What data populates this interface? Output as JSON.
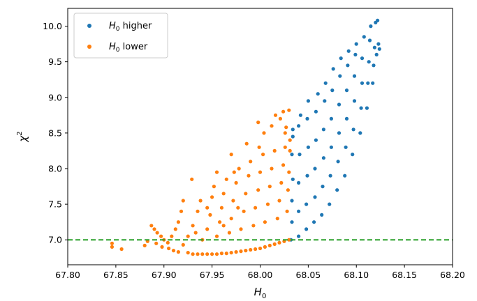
{
  "chart_data": {
    "type": "scatter",
    "xlabel": "H",
    "xlabel_sub": "0",
    "ylabel": "χ",
    "ylabel_sup": "2",
    "xlim": [
      67.8,
      68.2
    ],
    "ylim": [
      6.65,
      10.25
    ],
    "xticks": [
      67.8,
      67.85,
      67.9,
      67.95,
      68.0,
      68.05,
      68.1,
      68.15,
      68.2
    ],
    "xtick_labels": [
      "67.80",
      "67.85",
      "67.90",
      "67.95",
      "68.00",
      "68.05",
      "68.10",
      "68.15",
      "68.20"
    ],
    "yticks": [
      7.0,
      7.5,
      8.0,
      8.5,
      9.0,
      9.5,
      10.0
    ],
    "ytick_labels": [
      "7.0",
      "7.5",
      "8.0",
      "8.5",
      "9.0",
      "9.5",
      "10.0"
    ],
    "grid": false,
    "legend_position": "top-left",
    "reference_line": {
      "y": 7.0,
      "style": "dashed",
      "color": "#2ca02c"
    },
    "series": [
      {
        "name_base": "H",
        "name_sub": "0",
        "name_rest": " higher",
        "color": "#1f77b4",
        "points": [
          [
            68.032,
            7.0
          ],
          [
            68.033,
            7.25
          ],
          [
            68.033,
            7.55
          ],
          [
            68.034,
            7.85
          ],
          [
            68.033,
            8.2
          ],
          [
            68.034,
            8.45
          ],
          [
            68.034,
            8.55
          ],
          [
            68.04,
            7.05
          ],
          [
            68.04,
            7.4
          ],
          [
            68.04,
            7.8
          ],
          [
            68.041,
            8.2
          ],
          [
            68.04,
            8.6
          ],
          [
            68.042,
            8.75
          ],
          [
            68.048,
            7.15
          ],
          [
            68.048,
            7.5
          ],
          [
            68.049,
            7.9
          ],
          [
            68.05,
            8.3
          ],
          [
            68.049,
            8.7
          ],
          [
            68.05,
            8.95
          ],
          [
            68.056,
            7.25
          ],
          [
            68.057,
            7.6
          ],
          [
            68.057,
            8.0
          ],
          [
            68.058,
            8.4
          ],
          [
            68.058,
            8.8
          ],
          [
            68.06,
            9.05
          ],
          [
            68.064,
            7.35
          ],
          [
            68.065,
            7.75
          ],
          [
            68.066,
            8.15
          ],
          [
            68.066,
            8.55
          ],
          [
            68.067,
            8.95
          ],
          [
            68.068,
            9.2
          ],
          [
            68.072,
            7.5
          ],
          [
            68.073,
            7.9
          ],
          [
            68.074,
            8.3
          ],
          [
            68.074,
            8.7
          ],
          [
            68.075,
            9.1
          ],
          [
            68.076,
            9.4
          ],
          [
            68.08,
            7.7
          ],
          [
            68.081,
            8.1
          ],
          [
            68.082,
            8.5
          ],
          [
            68.082,
            8.9
          ],
          [
            68.083,
            9.3
          ],
          [
            68.084,
            9.55
          ],
          [
            68.088,
            7.9
          ],
          [
            68.089,
            8.3
          ],
          [
            68.09,
            8.7
          ],
          [
            68.09,
            9.1
          ],
          [
            68.091,
            9.45
          ],
          [
            68.092,
            9.65
          ],
          [
            68.096,
            8.2
          ],
          [
            68.097,
            8.55
          ],
          [
            68.098,
            8.95
          ],
          [
            68.098,
            9.3
          ],
          [
            68.099,
            9.6
          ],
          [
            68.1,
            9.75
          ],
          [
            68.104,
            8.5
          ],
          [
            68.105,
            8.85
          ],
          [
            68.106,
            9.2
          ],
          [
            68.106,
            9.55
          ],
          [
            68.108,
            9.85
          ],
          [
            68.111,
            8.85
          ],
          [
            68.112,
            9.2
          ],
          [
            68.113,
            9.5
          ],
          [
            68.114,
            9.8
          ],
          [
            68.115,
            10.0
          ],
          [
            68.117,
            9.2
          ],
          [
            68.118,
            9.45
          ],
          [
            68.119,
            9.7
          ],
          [
            68.12,
            10.05
          ],
          [
            68.122,
            10.08
          ],
          [
            68.121,
            9.6
          ],
          [
            68.123,
            9.75
          ],
          [
            68.124,
            9.68
          ]
        ]
      },
      {
        "name_base": "H",
        "name_sub": "0",
        "name_rest": " lower",
        "color": "#ff7f0e",
        "points": [
          [
            67.846,
            6.9
          ],
          [
            67.846,
            6.95
          ],
          [
            67.856,
            6.87
          ],
          [
            67.88,
            6.92
          ],
          [
            67.883,
            6.98
          ],
          [
            67.887,
            7.2
          ],
          [
            67.89,
            7.15
          ],
          [
            67.893,
            7.1
          ],
          [
            67.897,
            7.05
          ],
          [
            67.9,
            7.0
          ],
          [
            67.904,
            6.96
          ],
          [
            67.892,
            6.95
          ],
          [
            67.898,
            6.9
          ],
          [
            67.905,
            6.88
          ],
          [
            67.91,
            6.85
          ],
          [
            67.915,
            6.83
          ],
          [
            67.908,
            7.05
          ],
          [
            67.912,
            7.15
          ],
          [
            67.915,
            7.25
          ],
          [
            67.918,
            7.4
          ],
          [
            67.92,
            6.93
          ],
          [
            67.925,
            6.82
          ],
          [
            67.93,
            6.8
          ],
          [
            67.935,
            6.8
          ],
          [
            67.94,
            6.8
          ],
          [
            67.945,
            6.8
          ],
          [
            67.95,
            6.8
          ],
          [
            67.955,
            6.8
          ],
          [
            67.96,
            6.81
          ],
          [
            67.965,
            6.81
          ],
          [
            67.97,
            6.82
          ],
          [
            67.975,
            6.83
          ],
          [
            67.98,
            6.84
          ],
          [
            67.985,
            6.85
          ],
          [
            67.99,
            6.86
          ],
          [
            67.995,
            6.87
          ],
          [
            68.0,
            6.88
          ],
          [
            68.005,
            6.9
          ],
          [
            68.01,
            6.92
          ],
          [
            68.015,
            6.94
          ],
          [
            68.02,
            6.96
          ],
          [
            68.025,
            6.98
          ],
          [
            68.03,
            7.0
          ],
          [
            67.925,
            7.05
          ],
          [
            67.93,
            7.2
          ],
          [
            67.935,
            7.4
          ],
          [
            67.938,
            7.55
          ],
          [
            67.94,
            7.0
          ],
          [
            67.945,
            7.15
          ],
          [
            67.948,
            7.35
          ],
          [
            67.95,
            7.6
          ],
          [
            67.952,
            7.75
          ],
          [
            67.955,
            7.05
          ],
          [
            67.958,
            7.25
          ],
          [
            67.96,
            7.45
          ],
          [
            67.962,
            7.65
          ],
          [
            67.965,
            7.85
          ],
          [
            67.968,
            7.1
          ],
          [
            67.97,
            7.3
          ],
          [
            67.972,
            7.55
          ],
          [
            67.975,
            7.8
          ],
          [
            67.978,
            8.0
          ],
          [
            67.98,
            7.15
          ],
          [
            67.983,
            7.4
          ],
          [
            67.985,
            7.65
          ],
          [
            67.988,
            7.9
          ],
          [
            67.99,
            8.1
          ],
          [
            67.993,
            7.2
          ],
          [
            67.995,
            7.45
          ],
          [
            67.998,
            7.7
          ],
          [
            68.0,
            7.95
          ],
          [
            68.003,
            8.2
          ],
          [
            68.005,
            7.25
          ],
          [
            68.008,
            7.5
          ],
          [
            68.01,
            7.75
          ],
          [
            68.012,
            8.0
          ],
          [
            68.015,
            8.25
          ],
          [
            68.018,
            7.3
          ],
          [
            68.02,
            7.55
          ],
          [
            68.022,
            7.8
          ],
          [
            68.024,
            8.05
          ],
          [
            68.026,
            8.3
          ],
          [
            68.028,
            7.4
          ],
          [
            68.029,
            7.7
          ],
          [
            68.03,
            7.95
          ],
          [
            68.031,
            8.25
          ],
          [
            68.031,
            8.4
          ],
          [
            67.92,
            7.55
          ],
          [
            67.929,
            7.85
          ],
          [
            67.955,
            7.95
          ],
          [
            67.97,
            8.2
          ],
          [
            67.986,
            8.35
          ],
          [
            67.998,
            8.65
          ],
          [
            68.004,
            8.5
          ],
          [
            68.012,
            8.6
          ],
          [
            68.016,
            8.75
          ],
          [
            68.021,
            8.7
          ],
          [
            68.024,
            8.8
          ],
          [
            68.027,
            8.58
          ],
          [
            68.03,
            8.82
          ],
          [
            67.977,
            7.45
          ],
          [
            67.962,
            7.2
          ],
          [
            67.933,
            7.1
          ],
          [
            67.945,
            7.45
          ],
          [
            67.973,
            7.95
          ],
          [
            67.999,
            8.3
          ],
          [
            68.026,
            8.5
          ]
        ]
      }
    ]
  }
}
